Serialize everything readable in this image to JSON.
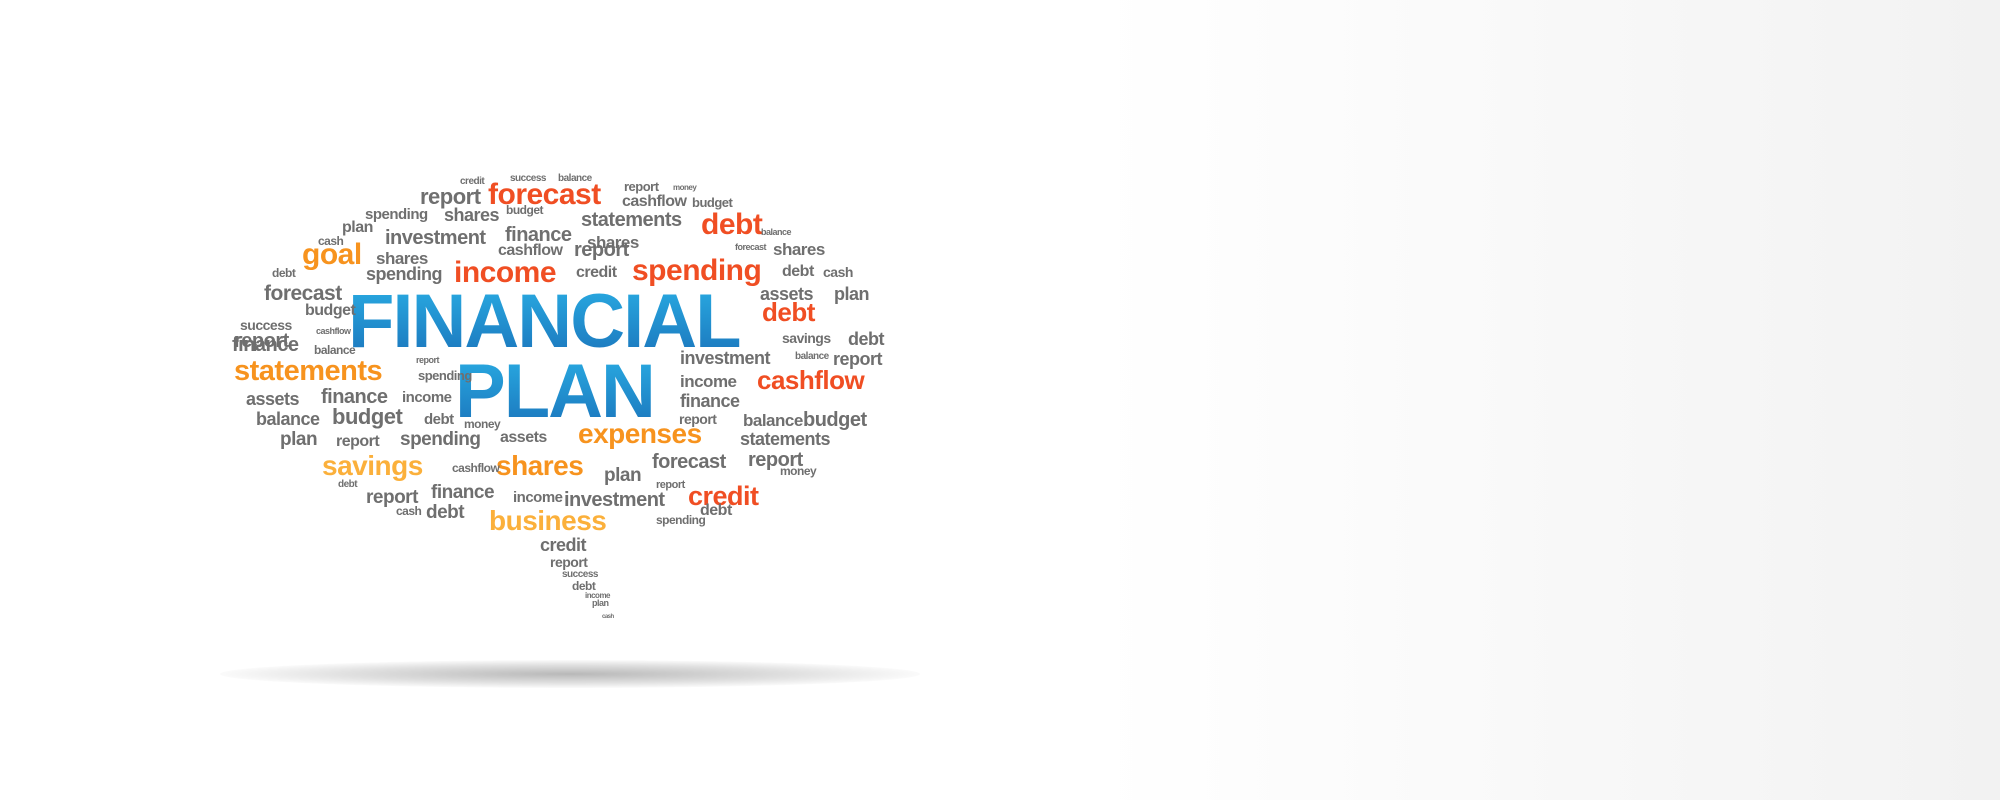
{
  "headline": {
    "line1": "FINANCIAL",
    "line2": "PLAN"
  },
  "colors": {
    "headline_top": "#29abe2",
    "headline_bottom": "#1b75bc",
    "grey": "#6f6f6f",
    "orange": "#f7931e",
    "red": "#f04e23",
    "yellow": "#fbb03b"
  },
  "words": [
    "credit",
    "success",
    "balance",
    "report",
    "money",
    "report",
    "forecast",
    "cashflow",
    "budget",
    "spending",
    "shares",
    "budget",
    "statements",
    "debt",
    "plan",
    "investment",
    "finance",
    "shares",
    "balance",
    "cash",
    "goal",
    "shares",
    "cashflow",
    "report",
    "forecast",
    "shares",
    "debt",
    "spending",
    "income",
    "credit",
    "spending",
    "debt",
    "cash",
    "forecast",
    "assets",
    "plan",
    "budget",
    "debt",
    "success",
    "cashflow",
    "report",
    "savings",
    "debt",
    "finance",
    "balance",
    "investment",
    "balance",
    "report",
    "statements",
    "report",
    "spending",
    "income",
    "cashflow",
    "assets",
    "finance",
    "income",
    "finance",
    "balance",
    "budget",
    "debt",
    "money",
    "report",
    "balance",
    "budget",
    "plan",
    "report",
    "spending",
    "assets",
    "expenses",
    "statements",
    "savings",
    "shares",
    "forecast",
    "report",
    "debt",
    "cashflow",
    "plan",
    "credit",
    "money",
    "report",
    "finance",
    "income",
    "investment",
    "report",
    "cash",
    "debt",
    "business",
    "spending",
    "debt",
    "credit",
    "report",
    "success",
    "debt",
    "income",
    "plan",
    "cash"
  ]
}
